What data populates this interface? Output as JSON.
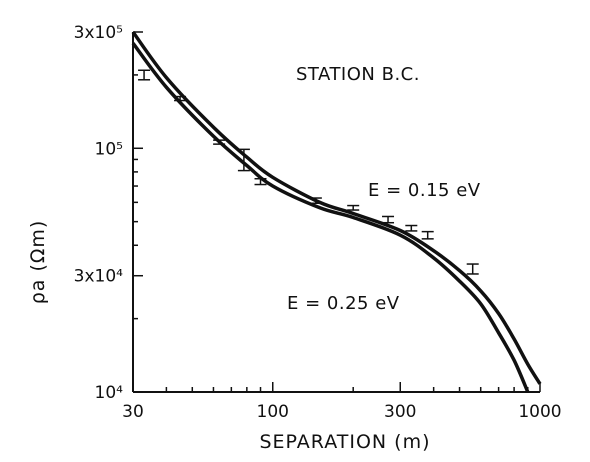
{
  "chart_data": {
    "type": "line",
    "title": "",
    "xlabel": "SEPARATION (m)",
    "ylabel": "ρa (Ωm)",
    "xscale": "log",
    "yscale": "log",
    "xlim": [
      30,
      1000
    ],
    "ylim": [
      10000,
      300000
    ],
    "x_ticks": [
      30,
      100,
      300,
      1000
    ],
    "x_tick_labels": [
      "30",
      "100",
      "300",
      "1000"
    ],
    "y_ticks": [
      10000,
      30000,
      100000,
      300000
    ],
    "y_tick_labels": [
      "10⁴",
      "3x10⁴",
      "10⁵",
      "3x10⁵"
    ],
    "annotations": [
      "STATION B.C.",
      "E = 0.15 eV",
      "E = 0.25 eV"
    ],
    "series": [
      {
        "name": "E = 0.15 eV",
        "x": [
          30,
          40,
          60,
          80,
          100,
          150,
          200,
          300,
          400,
          500,
          600,
          700,
          800,
          900,
          1000
        ],
        "y": [
          300000,
          195000,
          122000,
          92000,
          76000,
          60000,
          54000,
          46000,
          38000,
          31500,
          26000,
          21000,
          16500,
          13000,
          10800
        ]
      },
      {
        "name": "E = 0.25 eV",
        "x": [
          30,
          40,
          60,
          80,
          100,
          150,
          200,
          300,
          400,
          500,
          600,
          700,
          800,
          900
        ],
        "y": [
          270000,
          178000,
          112000,
          85000,
          70000,
          57000,
          52000,
          44000,
          35500,
          28500,
          23000,
          17500,
          13500,
          10000
        ]
      }
    ],
    "observations": {
      "x": [
        33,
        45,
        63,
        78,
        90,
        145,
        200,
        270,
        330,
        380,
        560
      ],
      "y": [
        200000,
        160000,
        106000,
        90000,
        73000,
        61000,
        57000,
        51000,
        47000,
        44000,
        32000
      ],
      "error": [
        9000,
        3000,
        2000,
        9000,
        2000,
        1500,
        1200,
        1500,
        1200,
        1500,
        1500
      ]
    }
  }
}
